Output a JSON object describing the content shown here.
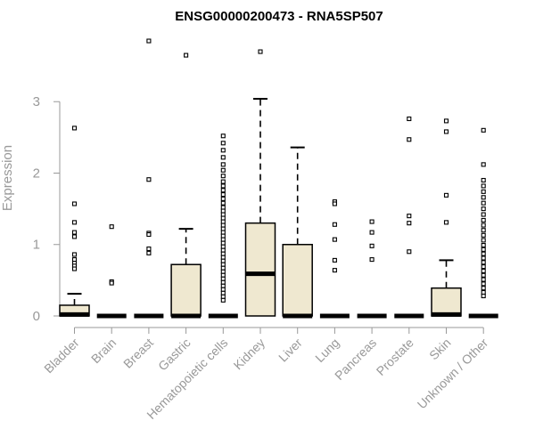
{
  "chart_data": {
    "type": "box",
    "title": "ENSG00000200473 - RNA5SP507",
    "xlabel": "",
    "ylabel": "Expression",
    "ylim": [
      0,
      3.9
    ],
    "yticks": [
      0,
      1,
      2,
      3
    ],
    "grid": false,
    "box_fill": "#efe8d0",
    "box_stroke": "#000000",
    "axis_color": "#999999",
    "categories": [
      "Bladder",
      "Brain",
      "Breast",
      "Gastric",
      "Hematopoietic cells",
      "Kidney",
      "Liver",
      "Lung",
      "Pancreas",
      "Prostate",
      "Skin",
      "Unknown / Other"
    ],
    "boxes": [
      {
        "category": "Bladder",
        "q1": 0,
        "median": 0.02,
        "q3": 0.15,
        "whisker_low": 0,
        "whisker_high": 0.31,
        "outliers": [
          2.63,
          1.57,
          1.31,
          1.17,
          1.11,
          0.86,
          0.79,
          0.74,
          0.7,
          0.66
        ]
      },
      {
        "category": "Brain",
        "q1": 0,
        "median": 0,
        "q3": 0,
        "whisker_low": 0,
        "whisker_high": 0,
        "outliers": [
          1.25,
          0.48,
          0.46
        ]
      },
      {
        "category": "Breast",
        "q1": 0,
        "median": 0,
        "q3": 0,
        "whisker_low": 0,
        "whisker_high": 0,
        "outliers": [
          3.85,
          1.91,
          1.16,
          1.14,
          0.94,
          0.88
        ]
      },
      {
        "category": "Gastric",
        "q1": 0,
        "median": 0,
        "q3": 0.72,
        "whisker_low": 0,
        "whisker_high": 1.22,
        "outliers": [
          3.65
        ]
      },
      {
        "category": "Hematopoietic cells",
        "q1": 0,
        "median": 0,
        "q3": 0,
        "whisker_low": 0,
        "whisker_high": 0,
        "outliers": [
          2.52,
          2.42,
          2.32,
          2.22,
          2.12,
          2.04,
          1.96,
          1.88,
          1.82,
          1.76,
          1.7,
          1.64,
          1.58,
          1.52,
          1.47,
          1.42,
          1.37,
          1.32,
          1.27,
          1.22,
          1.17,
          1.12,
          1.07,
          1.02,
          0.97,
          0.92,
          0.87,
          0.82,
          0.77,
          0.72,
          0.67,
          0.62,
          0.57,
          0.52,
          0.47,
          0.42,
          0.37,
          0.32,
          0.27,
          0.22
        ]
      },
      {
        "category": "Kidney",
        "q1": 0,
        "median": 0.59,
        "q3": 1.3,
        "whisker_low": 0,
        "whisker_high": 3.04,
        "outliers": [
          3.7
        ]
      },
      {
        "category": "Liver",
        "q1": 0,
        "median": 0,
        "q3": 1.0,
        "whisker_low": 0,
        "whisker_high": 2.36,
        "outliers": []
      },
      {
        "category": "Lung",
        "q1": 0,
        "median": 0,
        "q3": 0,
        "whisker_low": 0,
        "whisker_high": 0,
        "outliers": [
          1.6,
          1.57,
          1.28,
          1.07,
          0.78,
          0.64
        ]
      },
      {
        "category": "Pancreas",
        "q1": 0,
        "median": 0,
        "q3": 0,
        "whisker_low": 0,
        "whisker_high": 0,
        "outliers": [
          1.32,
          1.17,
          0.98,
          0.79
        ]
      },
      {
        "category": "Prostate",
        "q1": 0,
        "median": 0,
        "q3": 0,
        "whisker_low": 0,
        "whisker_high": 0,
        "outliers": [
          2.76,
          2.47,
          1.4,
          1.3,
          0.9
        ]
      },
      {
        "category": "Skin",
        "q1": 0,
        "median": 0.02,
        "q3": 0.39,
        "whisker_low": 0,
        "whisker_high": 0.78,
        "outliers": [
          2.73,
          2.58,
          1.69,
          1.31
        ]
      },
      {
        "category": "Unknown / Other",
        "q1": 0,
        "median": 0,
        "q3": 0,
        "whisker_low": 0,
        "whisker_high": 0,
        "outliers": [
          2.6,
          2.12,
          1.9,
          1.82,
          1.74,
          1.66,
          1.58,
          1.5,
          1.42,
          1.34,
          1.27,
          1.2,
          1.13,
          1.06,
          0.99,
          0.93,
          0.87,
          0.81,
          0.75,
          0.69,
          0.63,
          0.57,
          0.51,
          0.45,
          0.39,
          0.33,
          0.28
        ]
      }
    ]
  }
}
